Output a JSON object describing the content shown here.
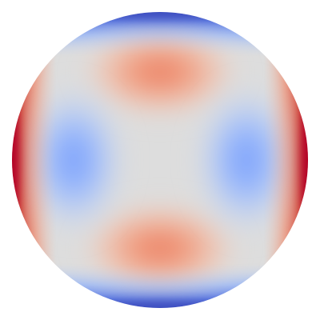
{
  "figure": {
    "kind": "scalar-field-on-disk",
    "colormap": "coolwarm",
    "colors": {
      "background": "#ffffff",
      "neutral": "#dddddd",
      "cool_mid": "#8db0fe",
      "cool_deep": "#4a6fe3",
      "cool_edge": "#3b4cc0",
      "warm_mid": "#f4987a",
      "warm_deep": "#e8765c",
      "warm_edge": "#b40426"
    },
    "features": {
      "warm_lobes": [
        "top",
        "bottom"
      ],
      "cool_lobes": [
        "left",
        "right"
      ],
      "rim_warm": [
        "left",
        "right"
      ],
      "rim_cool": [
        "top",
        "bottom"
      ]
    }
  }
}
